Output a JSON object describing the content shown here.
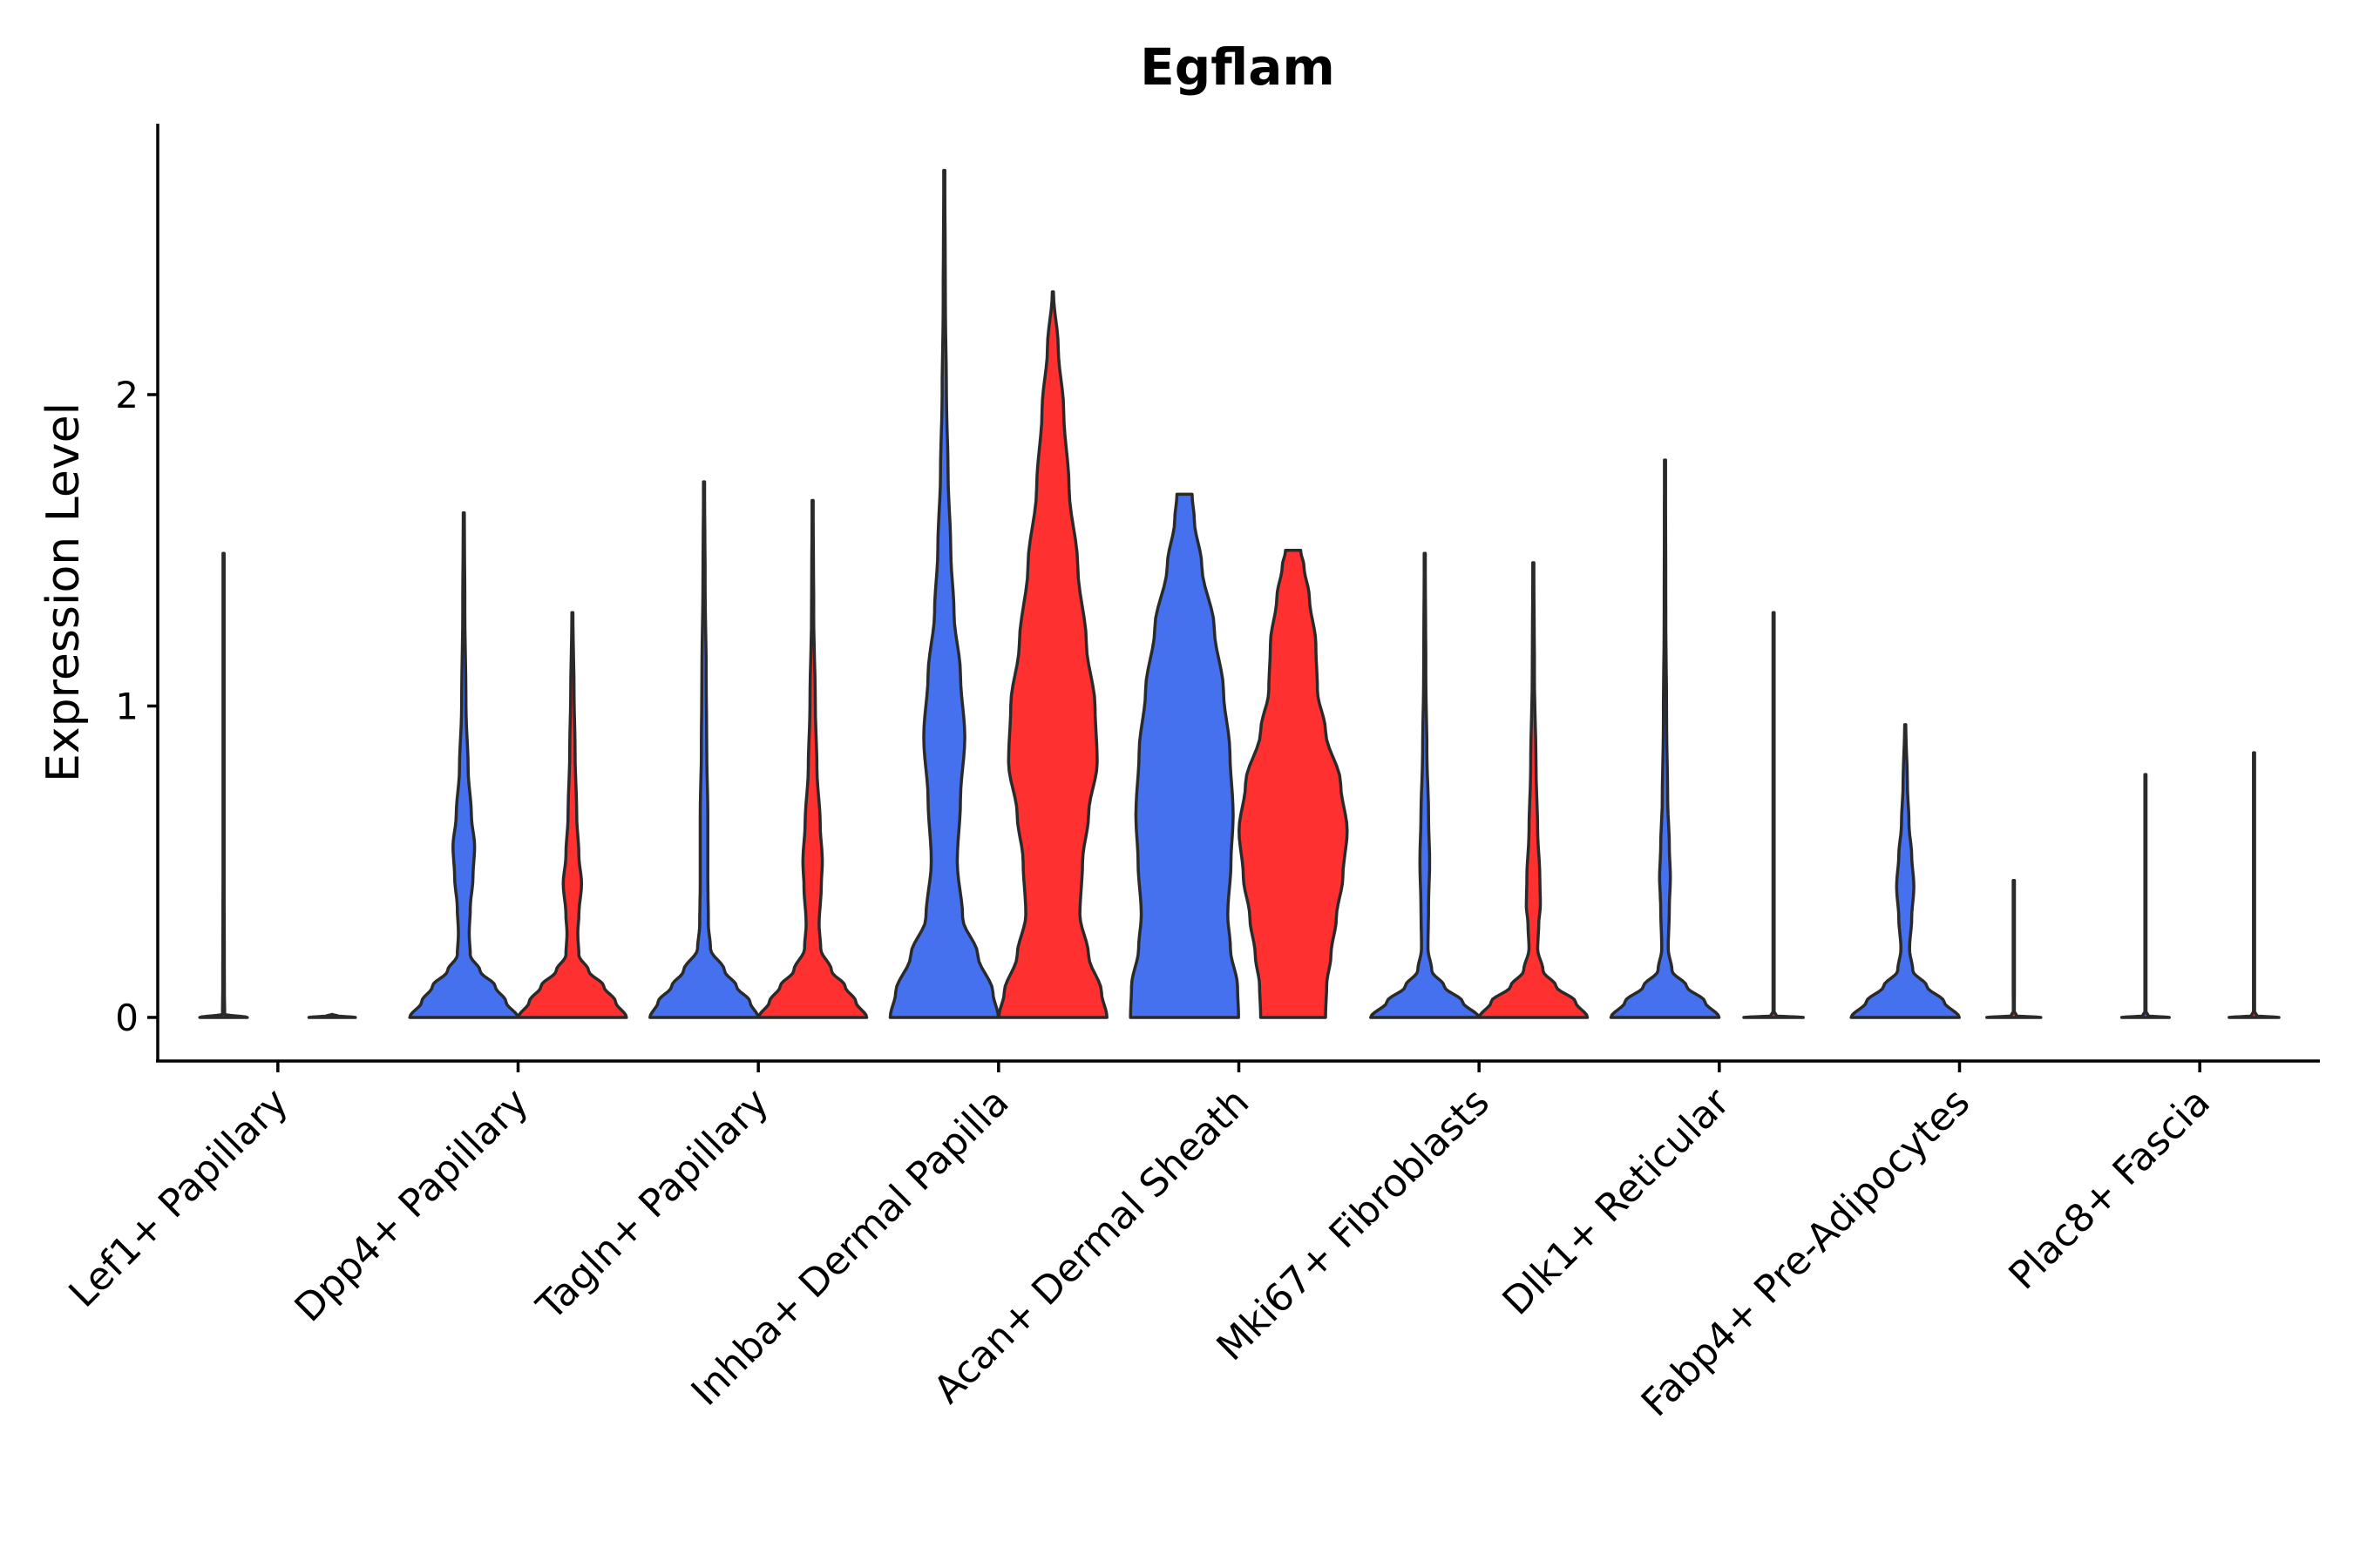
{
  "chart_data": {
    "type": "violin",
    "title": "Egflam",
    "ylabel": "Expression Level",
    "xlabel": "",
    "ylim": [
      -0.14,
      2.87
    ],
    "yticks": [
      0,
      1,
      2
    ],
    "yticklabels": [
      "0",
      "1",
      "2"
    ],
    "categories": [
      "Lef1+ Papillary",
      "Dpp4+ Papillary",
      "Tagln+ Papillary",
      "Inhba+ Dermal Papilla",
      "Acan+ Dermal Sheath",
      "Mki67+ Fibroblasts",
      "Dlk1+ Reticular",
      "Fabp4+ Pre-Adipocytes",
      "Plac8+ Fascia"
    ],
    "colors": {
      "group1": "#4570EE",
      "group2": "#FF3030"
    },
    "violins": [
      {
        "category": "Lef1+ Papillary",
        "group": "group1",
        "max": 1.49,
        "profile": [
          [
            0,
            0.44
          ],
          [
            0.01,
            0.02
          ],
          [
            0.1,
            0.015
          ],
          [
            0.5,
            0.01
          ],
          [
            1.0,
            0.01
          ],
          [
            1.49,
            0.01
          ]
        ]
      },
      {
        "category": "Lef1+ Papillary",
        "group": "group2",
        "max": 0.0,
        "profile": [
          [
            0,
            0.43
          ],
          [
            0.005,
            0.1
          ],
          [
            0.01,
            0
          ]
        ]
      },
      {
        "category": "Dpp4+ Papillary",
        "group": "group1",
        "max": 1.62,
        "profile": [
          [
            0,
            1.0
          ],
          [
            0.05,
            0.78
          ],
          [
            0.1,
            0.58
          ],
          [
            0.15,
            0.3
          ],
          [
            0.2,
            0.12
          ],
          [
            0.27,
            0.1
          ],
          [
            0.35,
            0.12
          ],
          [
            0.45,
            0.17
          ],
          [
            0.55,
            0.2
          ],
          [
            0.65,
            0.14
          ],
          [
            0.8,
            0.08
          ],
          [
            1.0,
            0.04
          ],
          [
            1.3,
            0.02
          ],
          [
            1.62,
            0.01
          ]
        ]
      },
      {
        "category": "Dpp4+ Papillary",
        "group": "group2",
        "max": 1.3,
        "profile": [
          [
            0,
            1.0
          ],
          [
            0.05,
            0.8
          ],
          [
            0.1,
            0.58
          ],
          [
            0.15,
            0.3
          ],
          [
            0.2,
            0.12
          ],
          [
            0.27,
            0.1
          ],
          [
            0.33,
            0.12
          ],
          [
            0.43,
            0.17
          ],
          [
            0.52,
            0.12
          ],
          [
            0.65,
            0.08
          ],
          [
            0.85,
            0.05
          ],
          [
            1.05,
            0.03
          ],
          [
            1.3,
            0.01
          ]
        ]
      },
      {
        "category": "Tagln+ Papillary",
        "group": "group1",
        "max": 1.72,
        "profile": [
          [
            0,
            1.0
          ],
          [
            0.05,
            0.85
          ],
          [
            0.1,
            0.6
          ],
          [
            0.15,
            0.38
          ],
          [
            0.22,
            0.12
          ],
          [
            0.3,
            0.08
          ],
          [
            0.45,
            0.07
          ],
          [
            0.65,
            0.07
          ],
          [
            0.85,
            0.05
          ],
          [
            1.1,
            0.04
          ],
          [
            1.4,
            0.02
          ],
          [
            1.72,
            0.01
          ]
        ]
      },
      {
        "category": "Tagln+ Papillary",
        "group": "group2",
        "max": 1.66,
        "profile": [
          [
            0,
            1.0
          ],
          [
            0.05,
            0.8
          ],
          [
            0.1,
            0.6
          ],
          [
            0.15,
            0.35
          ],
          [
            0.22,
            0.15
          ],
          [
            0.3,
            0.12
          ],
          [
            0.42,
            0.16
          ],
          [
            0.5,
            0.18
          ],
          [
            0.62,
            0.14
          ],
          [
            0.8,
            0.08
          ],
          [
            1.0,
            0.05
          ],
          [
            1.3,
            0.02
          ],
          [
            1.66,
            0.01
          ]
        ]
      },
      {
        "category": "Inhba+ Dermal Papilla",
        "group": "group1",
        "max": 2.72,
        "profile": [
          [
            0,
            1.0
          ],
          [
            0.08,
            0.9
          ],
          [
            0.2,
            0.62
          ],
          [
            0.32,
            0.34
          ],
          [
            0.5,
            0.24
          ],
          [
            0.7,
            0.3
          ],
          [
            0.9,
            0.38
          ],
          [
            1.1,
            0.3
          ],
          [
            1.3,
            0.18
          ],
          [
            1.5,
            0.12
          ],
          [
            1.75,
            0.07
          ],
          [
            2.0,
            0.04
          ],
          [
            2.3,
            0.02
          ],
          [
            2.72,
            0.01
          ]
        ]
      },
      {
        "category": "Inhba+ Dermal Papilla",
        "group": "group2",
        "max": 2.33,
        "profile": [
          [
            0,
            1.0
          ],
          [
            0.08,
            0.9
          ],
          [
            0.2,
            0.66
          ],
          [
            0.33,
            0.5
          ],
          [
            0.5,
            0.55
          ],
          [
            0.65,
            0.66
          ],
          [
            0.82,
            0.82
          ],
          [
            1.0,
            0.78
          ],
          [
            1.2,
            0.62
          ],
          [
            1.45,
            0.46
          ],
          [
            1.7,
            0.3
          ],
          [
            1.95,
            0.2
          ],
          [
            2.15,
            0.1
          ],
          [
            2.33,
            0.01
          ]
        ]
      },
      {
        "category": "Acan+ Dermal Sheath",
        "group": "group1",
        "max": 1.68,
        "profile": [
          [
            0,
            1.0
          ],
          [
            0.1,
            0.98
          ],
          [
            0.22,
            0.85
          ],
          [
            0.33,
            0.8
          ],
          [
            0.5,
            0.86
          ],
          [
            0.65,
            0.9
          ],
          [
            0.85,
            0.84
          ],
          [
            1.05,
            0.72
          ],
          [
            1.25,
            0.55
          ],
          [
            1.45,
            0.32
          ],
          [
            1.6,
            0.18
          ],
          [
            1.68,
            0.14
          ]
        ]
      },
      {
        "category": "Acan+ Dermal Sheath",
        "group": "group2",
        "max": 1.5,
        "profile": [
          [
            0,
            0.6
          ],
          [
            0.1,
            0.62
          ],
          [
            0.2,
            0.7
          ],
          [
            0.32,
            0.8
          ],
          [
            0.45,
            0.92
          ],
          [
            0.6,
            1.0
          ],
          [
            0.75,
            0.88
          ],
          [
            0.92,
            0.6
          ],
          [
            1.05,
            0.45
          ],
          [
            1.2,
            0.42
          ],
          [
            1.35,
            0.3
          ],
          [
            1.45,
            0.2
          ],
          [
            1.5,
            0.14
          ]
        ]
      },
      {
        "category": "Mki67+ Fibroblasts",
        "group": "group1",
        "max": 1.49,
        "profile": [
          [
            0,
            1.0
          ],
          [
            0.05,
            0.7
          ],
          [
            0.1,
            0.36
          ],
          [
            0.15,
            0.13
          ],
          [
            0.22,
            0.06
          ],
          [
            0.35,
            0.07
          ],
          [
            0.5,
            0.09
          ],
          [
            0.65,
            0.07
          ],
          [
            0.85,
            0.04
          ],
          [
            1.1,
            0.02
          ],
          [
            1.49,
            0.01
          ]
        ]
      },
      {
        "category": "Mki67+ Fibroblasts",
        "group": "group2",
        "max": 1.46,
        "profile": [
          [
            0,
            1.0
          ],
          [
            0.05,
            0.78
          ],
          [
            0.1,
            0.42
          ],
          [
            0.15,
            0.18
          ],
          [
            0.22,
            0.08
          ],
          [
            0.3,
            0.1
          ],
          [
            0.36,
            0.13
          ],
          [
            0.45,
            0.12
          ],
          [
            0.6,
            0.08
          ],
          [
            0.8,
            0.05
          ],
          [
            1.1,
            0.02
          ],
          [
            1.46,
            0.01
          ]
        ]
      },
      {
        "category": "Dlk1+ Reticular",
        "group": "group1",
        "max": 1.79,
        "profile": [
          [
            0,
            1.0
          ],
          [
            0.05,
            0.74
          ],
          [
            0.1,
            0.4
          ],
          [
            0.15,
            0.13
          ],
          [
            0.22,
            0.06
          ],
          [
            0.35,
            0.08
          ],
          [
            0.45,
            0.1
          ],
          [
            0.55,
            0.08
          ],
          [
            0.7,
            0.05
          ],
          [
            0.95,
            0.03
          ],
          [
            1.3,
            0.015
          ],
          [
            1.79,
            0.01
          ]
        ]
      },
      {
        "category": "Dlk1+ Reticular",
        "group": "group2",
        "max": 1.3,
        "profile": [
          [
            0,
            0.55
          ],
          [
            0.005,
            0.05
          ],
          [
            0.02,
            0.01
          ],
          [
            0.5,
            0.01
          ],
          [
            1.3,
            0.01
          ]
        ]
      },
      {
        "category": "Fabp4+ Pre-Adipocytes",
        "group": "group1",
        "max": 0.94,
        "profile": [
          [
            0,
            1.0
          ],
          [
            0.05,
            0.72
          ],
          [
            0.1,
            0.4
          ],
          [
            0.15,
            0.14
          ],
          [
            0.22,
            0.08
          ],
          [
            0.32,
            0.12
          ],
          [
            0.42,
            0.16
          ],
          [
            0.52,
            0.12
          ],
          [
            0.62,
            0.07
          ],
          [
            0.75,
            0.04
          ],
          [
            0.94,
            0.01
          ]
        ]
      },
      {
        "category": "Fabp4+ Pre-Adipocytes",
        "group": "group2",
        "max": 0.44,
        "profile": [
          [
            0,
            0.5
          ],
          [
            0.005,
            0.05
          ],
          [
            0.02,
            0.01
          ],
          [
            0.2,
            0.012
          ],
          [
            0.44,
            0.012
          ]
        ]
      },
      {
        "category": "Plac8+ Fascia",
        "group": "group1",
        "max": 0.78,
        "profile": [
          [
            0,
            0.44
          ],
          [
            0.005,
            0.05
          ],
          [
            0.02,
            0.01
          ],
          [
            0.78,
            0.01
          ]
        ]
      },
      {
        "category": "Plac8+ Fascia",
        "group": "group2",
        "max": 0.85,
        "profile": [
          [
            0,
            0.46
          ],
          [
            0.005,
            0.05
          ],
          [
            0.02,
            0.01
          ],
          [
            0.85,
            0.01
          ]
        ]
      }
    ]
  }
}
